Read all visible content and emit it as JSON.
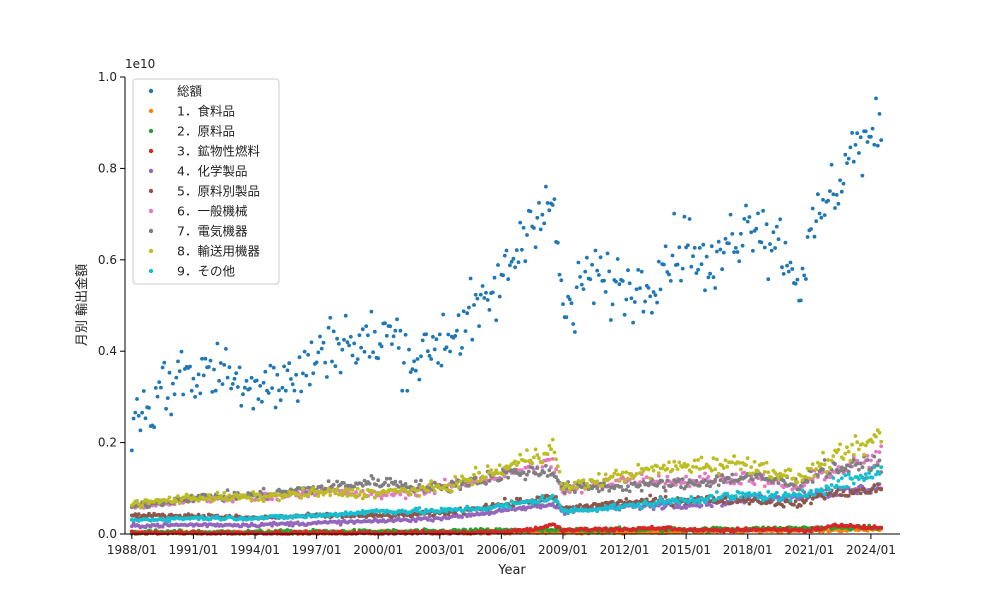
{
  "chart_data": {
    "type": "scatter",
    "title": "",
    "xlabel": "Year",
    "ylabel": "月別 輸出金額",
    "y_offset_label": "1e10",
    "x_range": [
      "1987/09",
      "2025/06"
    ],
    "ylim": [
      0,
      1.0
    ],
    "y_scale": "1e10",
    "x_ticks": [
      "1988/01",
      "1991/01",
      "1994/01",
      "1997/01",
      "2000/01",
      "2003/01",
      "2006/01",
      "2009/01",
      "2012/01",
      "2015/01",
      "2018/01",
      "2021/01",
      "2024/01"
    ],
    "y_ticks": [
      "0.0",
      "0.2",
      "0.4",
      "0.6",
      "0.8",
      "1.0"
    ],
    "grid": false,
    "legend_position": "top-left",
    "x_sample_step_months": 6,
    "series": [
      {
        "name": "総額",
        "color": "#1f77b4",
        "x": [
          "1988/01",
          "1988/07",
          "1989/01",
          "1989/07",
          "1990/01",
          "1990/07",
          "1991/01",
          "1991/07",
          "1992/01",
          "1992/07",
          "1993/01",
          "1993/07",
          "1994/01",
          "1994/07",
          "1995/01",
          "1995/07",
          "1996/01",
          "1996/07",
          "1997/01",
          "1997/07",
          "1998/01",
          "1998/07",
          "1999/01",
          "1999/07",
          "2000/01",
          "2000/07",
          "2001/01",
          "2001/07",
          "2002/01",
          "2002/07",
          "2003/01",
          "2003/07",
          "2004/01",
          "2004/07",
          "2005/01",
          "2005/07",
          "2006/01",
          "2006/07",
          "2007/01",
          "2007/07",
          "2008/01",
          "2008/07",
          "2009/01",
          "2009/07",
          "2010/01",
          "2010/07",
          "2011/01",
          "2011/07",
          "2012/01",
          "2012/07",
          "2013/01",
          "2013/07",
          "2014/01",
          "2014/07",
          "2015/01",
          "2015/07",
          "2016/01",
          "2016/07",
          "2017/01",
          "2017/07",
          "2018/01",
          "2018/07",
          "2019/01",
          "2019/07",
          "2020/01",
          "2020/07",
          "2021/01",
          "2021/07",
          "2022/01",
          "2022/07",
          "2023/01",
          "2023/07",
          "2024/01",
          "2024/07"
        ],
        "values": [
          0.24,
          0.28,
          0.28,
          0.32,
          0.33,
          0.36,
          0.34,
          0.36,
          0.35,
          0.37,
          0.33,
          0.35,
          0.32,
          0.35,
          0.32,
          0.33,
          0.34,
          0.36,
          0.38,
          0.42,
          0.42,
          0.43,
          0.4,
          0.42,
          0.42,
          0.44,
          0.42,
          0.39,
          0.38,
          0.41,
          0.42,
          0.44,
          0.45,
          0.48,
          0.48,
          0.52,
          0.55,
          0.6,
          0.64,
          0.7,
          0.72,
          0.72,
          0.5,
          0.48,
          0.56,
          0.57,
          0.55,
          0.55,
          0.54,
          0.54,
          0.54,
          0.58,
          0.6,
          0.62,
          0.64,
          0.62,
          0.57,
          0.58,
          0.64,
          0.66,
          0.68,
          0.7,
          0.64,
          0.65,
          0.6,
          0.55,
          0.63,
          0.7,
          0.73,
          0.78,
          0.84,
          0.85,
          0.86,
          0.88
        ]
      },
      {
        "name": "1．食料品",
        "color": "#ff7f0e",
        "x": [
          "1988/01",
          "1991/01",
          "1994/01",
          "1997/01",
          "2000/01",
          "2003/01",
          "2006/01",
          "2009/01",
          "2012/01",
          "2015/01",
          "2018/01",
          "2021/01",
          "2024/01",
          "2024/07"
        ],
        "values": [
          0.003,
          0.003,
          0.003,
          0.003,
          0.003,
          0.003,
          0.004,
          0.004,
          0.004,
          0.006,
          0.007,
          0.008,
          0.01,
          0.011
        ]
      },
      {
        "name": "2．原料品",
        "color": "#2ca02c",
        "x": [
          "1988/01",
          "1991/01",
          "1994/01",
          "1997/01",
          "2000/01",
          "2003/01",
          "2006/01",
          "2009/01",
          "2012/01",
          "2015/01",
          "2018/01",
          "2021/01",
          "2024/01",
          "2024/07"
        ],
        "values": [
          0.004,
          0.004,
          0.004,
          0.005,
          0.005,
          0.006,
          0.008,
          0.008,
          0.01,
          0.01,
          0.011,
          0.013,
          0.014,
          0.014
        ]
      },
      {
        "name": "3．鉱物性燃料",
        "color": "#d62728",
        "x": [
          "1988/01",
          "1991/01",
          "1994/01",
          "1997/01",
          "2000/01",
          "2003/01",
          "2006/01",
          "2007/07",
          "2008/07",
          "2009/01",
          "2010/07",
          "2012/01",
          "2013/07",
          "2015/01",
          "2016/07",
          "2018/01",
          "2019/07",
          "2021/01",
          "2022/07",
          "2023/07",
          "2024/07"
        ],
        "values": [
          0.002,
          0.002,
          0.002,
          0.002,
          0.002,
          0.003,
          0.005,
          0.01,
          0.02,
          0.008,
          0.01,
          0.01,
          0.013,
          0.01,
          0.007,
          0.01,
          0.01,
          0.008,
          0.02,
          0.015,
          0.012
        ]
      },
      {
        "name": "4．化学製品",
        "color": "#9467bd",
        "x": [
          "1988/01",
          "1991/01",
          "1994/01",
          "1997/01",
          "2000/01",
          "2003/01",
          "2006/01",
          "2008/07",
          "2009/01",
          "2012/01",
          "2015/01",
          "2018/01",
          "2021/01",
          "2024/01",
          "2024/07"
        ],
        "values": [
          0.018,
          0.02,
          0.02,
          0.024,
          0.028,
          0.035,
          0.05,
          0.065,
          0.05,
          0.06,
          0.065,
          0.075,
          0.085,
          0.1,
          0.105
        ]
      },
      {
        "name": "5．原料別製品",
        "color": "#8c564b",
        "x": [
          "1988/01",
          "1991/01",
          "1994/01",
          "1997/01",
          "2000/01",
          "2003/01",
          "2006/01",
          "2008/07",
          "2009/01",
          "2012/01",
          "2015/01",
          "2018/01",
          "2020/07",
          "2021/07",
          "2024/01",
          "2024/07"
        ],
        "values": [
          0.04,
          0.04,
          0.035,
          0.04,
          0.04,
          0.045,
          0.065,
          0.08,
          0.055,
          0.07,
          0.075,
          0.075,
          0.065,
          0.085,
          0.095,
          0.1
        ]
      },
      {
        "name": "6．一般機械",
        "color": "#e377c2",
        "x": [
          "1988/01",
          "1991/01",
          "1994/01",
          "1997/01",
          "2000/01",
          "2003/01",
          "2006/01",
          "2008/07",
          "2009/01",
          "2012/01",
          "2015/01",
          "2018/01",
          "2020/07",
          "2021/07",
          "2024/01",
          "2024/07"
        ],
        "values": [
          0.06,
          0.075,
          0.08,
          0.095,
          0.085,
          0.1,
          0.13,
          0.155,
          0.09,
          0.12,
          0.115,
          0.125,
          0.1,
          0.13,
          0.16,
          0.17
        ]
      },
      {
        "name": "7．電気機器",
        "color": "#7f7f7f",
        "x": [
          "1988/01",
          "1991/01",
          "1994/01",
          "1997/01",
          "2000/01",
          "2003/01",
          "2006/01",
          "2008/07",
          "2009/01",
          "2012/01",
          "2015/01",
          "2018/01",
          "2020/07",
          "2021/07",
          "2024/01",
          "2024/07"
        ],
        "values": [
          0.06,
          0.08,
          0.085,
          0.1,
          0.115,
          0.1,
          0.13,
          0.14,
          0.1,
          0.105,
          0.11,
          0.125,
          0.11,
          0.14,
          0.15,
          0.155
        ]
      },
      {
        "name": "8．輸送用機器",
        "color": "#bcbd22",
        "x": [
          "1988/01",
          "1991/01",
          "1994/01",
          "1997/01",
          "2000/01",
          "2003/01",
          "2006/01",
          "2008/01",
          "2008/07",
          "2009/01",
          "2012/01",
          "2015/01",
          "2018/01",
          "2020/07",
          "2021/07",
          "2024/01",
          "2024/07"
        ],
        "values": [
          0.065,
          0.08,
          0.08,
          0.09,
          0.09,
          0.1,
          0.14,
          0.18,
          0.19,
          0.1,
          0.13,
          0.15,
          0.155,
          0.12,
          0.15,
          0.2,
          0.22
        ]
      },
      {
        "name": "9．その他",
        "color": "#17becf",
        "x": [
          "1988/01",
          "1991/01",
          "1994/01",
          "1997/01",
          "2000/01",
          "2003/01",
          "2006/01",
          "2008/07",
          "2009/01",
          "2012/01",
          "2015/01",
          "2018/01",
          "2020/07",
          "2021/07",
          "2024/01",
          "2024/07"
        ],
        "values": [
          0.03,
          0.035,
          0.035,
          0.04,
          0.05,
          0.05,
          0.06,
          0.08,
          0.05,
          0.06,
          0.075,
          0.085,
          0.08,
          0.1,
          0.13,
          0.14
        ]
      }
    ]
  }
}
